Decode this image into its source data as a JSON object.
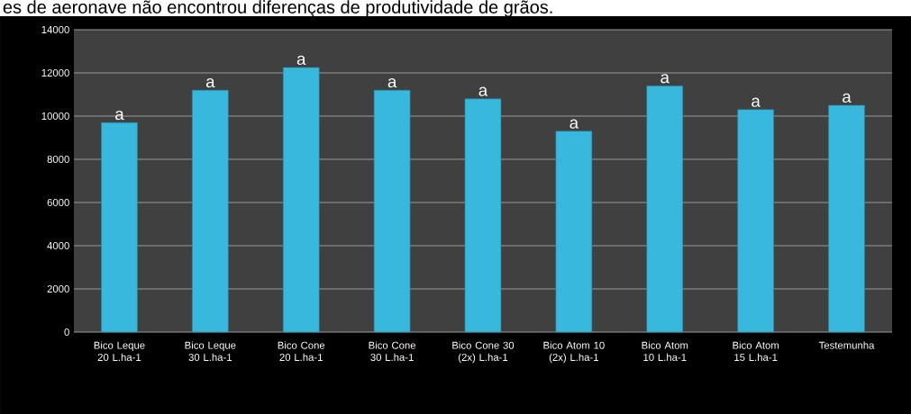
{
  "chart_data": {
    "type": "bar",
    "title": "es de aeronave não encontrou diferenças de produtividade de grãos.",
    "categories": [
      "Bico Leque 20 L.ha-1",
      "Bico Leque 30 L.ha-1",
      "Bico Cone 20 L.ha-1",
      "Bico Cone 30 L.ha-1",
      "Bico Cone 30 (2x) L.ha-1",
      "Bico Atom 10 (2x) L.ha-1",
      "Bico Atom 10 L.ha-1",
      "Bico Atom 15 L.ha-1",
      "Testemunha"
    ],
    "values": [
      9700,
      11200,
      12250,
      11200,
      10800,
      9300,
      11400,
      10300,
      10500
    ],
    "value_labels": [
      "a",
      "a",
      "a",
      "a",
      "a",
      "a",
      "a",
      "a",
      "a"
    ],
    "color": "#38b8dc",
    "ylim": [
      0,
      14000
    ],
    "yticks": [
      0,
      2000,
      4000,
      6000,
      8000,
      10000,
      12000,
      14000
    ],
    "grid": "y"
  }
}
